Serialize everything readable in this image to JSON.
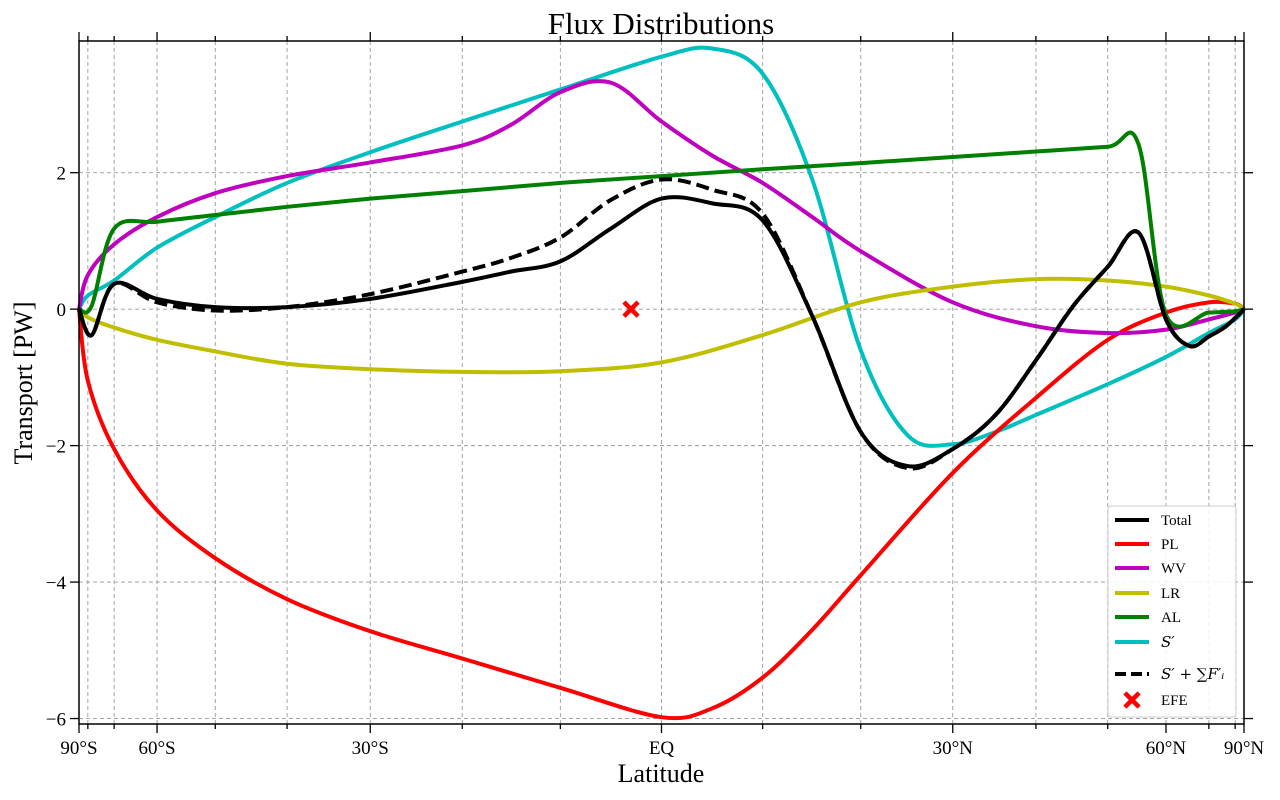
{
  "chart_data": {
    "type": "line",
    "title": "Flux Distributions",
    "xlabel": "Latitude",
    "ylabel": "Transport [PW]",
    "xscale": "sine of latitude",
    "xlim": [
      -90,
      90
    ],
    "ylim": [
      -6.08,
      3.93
    ],
    "grid": true,
    "legend_position": "bottom-right",
    "x_major_ticks": [
      {
        "lat": -90,
        "label": "90°S"
      },
      {
        "lat": -60,
        "label": "60°S"
      },
      {
        "lat": -30,
        "label": "30°S"
      },
      {
        "lat": 0,
        "label": "EQ"
      },
      {
        "lat": 30,
        "label": "30°N"
      },
      {
        "lat": 60,
        "label": "60°N"
      },
      {
        "lat": 90,
        "label": "90°N"
      }
    ],
    "x_minor_ticks": [
      -80,
      -70,
      -50,
      -40,
      -20,
      -10,
      10,
      20,
      40,
      50,
      70,
      80
    ],
    "y_ticks": [
      {
        "value": -6,
        "label": "−6"
      },
      {
        "value": -4,
        "label": "−4"
      },
      {
        "value": -2,
        "label": "−2"
      },
      {
        "value": 0,
        "label": "0"
      },
      {
        "value": 2,
        "label": "2"
      }
    ],
    "series": [
      {
        "name": "Total",
        "color": "#000000",
        "dash": "solid",
        "x": [
          -90,
          -78,
          -70,
          -60,
          -50,
          -40,
          -30,
          -20,
          -15,
          -10,
          -5,
          0,
          5,
          10,
          15,
          20,
          25,
          30,
          35,
          40,
          45,
          50,
          55,
          60,
          65,
          70,
          75,
          80,
          90
        ],
        "y": [
          0,
          -0.38,
          0.37,
          0.15,
          0.03,
          0.03,
          0.15,
          0.4,
          0.55,
          0.7,
          1.18,
          1.62,
          1.55,
          1.3,
          -0.1,
          -1.8,
          -2.3,
          -2.05,
          -1.55,
          -0.75,
          0.05,
          0.62,
          1.12,
          -0.15,
          -0.54,
          -0.4,
          -0.27,
          -0.13,
          0
        ]
      },
      {
        "name": "PL",
        "color": "#ff0000",
        "dash": "solid",
        "x": [
          -90,
          -80,
          -70,
          -60,
          -50,
          -40,
          -30,
          -20,
          -10,
          0,
          5,
          10,
          15,
          20,
          30,
          40,
          50,
          60,
          70,
          80,
          90
        ],
        "y": [
          0,
          -1.05,
          -2.05,
          -2.95,
          -3.65,
          -4.25,
          -4.72,
          -5.12,
          -5.55,
          -5.98,
          -5.85,
          -5.4,
          -4.7,
          -3.9,
          -2.4,
          -1.3,
          -0.45,
          -0.05,
          0.1,
          0.08,
          0
        ]
      },
      {
        "name": "WV",
        "color": "#bf00bf",
        "dash": "solid",
        "x": [
          -90,
          -80,
          -70,
          -60,
          -50,
          -40,
          -30,
          -20,
          -15,
          -10,
          -5,
          0,
          5,
          10,
          15,
          20,
          30,
          40,
          50,
          60,
          70,
          80,
          90
        ],
        "y": [
          0,
          0.5,
          0.95,
          1.35,
          1.7,
          1.95,
          2.15,
          2.4,
          2.7,
          3.18,
          3.32,
          2.75,
          2.25,
          1.85,
          1.35,
          0.85,
          0.1,
          -0.25,
          -0.35,
          -0.3,
          -0.15,
          -0.05,
          0
        ]
      },
      {
        "name": "LR",
        "color": "#bfbf00",
        "dash": "solid",
        "x": [
          -90,
          -80,
          -70,
          -60,
          -50,
          -40,
          -30,
          -20,
          -10,
          0,
          10,
          20,
          30,
          40,
          50,
          60,
          70,
          80,
          90
        ],
        "y": [
          0,
          -0.12,
          -0.27,
          -0.45,
          -0.62,
          -0.8,
          -0.88,
          -0.92,
          -0.91,
          -0.78,
          -0.38,
          0.1,
          0.33,
          0.44,
          0.42,
          0.33,
          0.2,
          0.08,
          0
        ]
      },
      {
        "name": "AL",
        "color": "#008000",
        "dash": "solid",
        "x": [
          -90,
          -78,
          -70,
          -60,
          -50,
          -40,
          -30,
          -20,
          -10,
          0,
          10,
          20,
          30,
          40,
          50,
          55,
          60,
          70,
          80,
          90
        ],
        "y": [
          0,
          0.05,
          1.18,
          1.28,
          1.38,
          1.5,
          1.62,
          1.73,
          1.85,
          1.95,
          2.05,
          2.14,
          2.23,
          2.31,
          2.38,
          2.41,
          -0.08,
          -0.05,
          -0.03,
          0
        ]
      },
      {
        "name": "S′",
        "color": "#00bfbf",
        "dash": "solid",
        "x": [
          -90,
          -80,
          -70,
          -60,
          -50,
          -40,
          -30,
          -20,
          -10,
          0,
          5,
          10,
          15,
          20,
          25,
          30,
          35,
          40,
          50,
          60,
          70,
          80,
          90
        ],
        "y": [
          0,
          0.2,
          0.42,
          0.9,
          1.35,
          1.85,
          2.3,
          2.75,
          3.22,
          3.7,
          3.82,
          3.45,
          1.9,
          -0.6,
          -1.85,
          -1.98,
          -1.8,
          -1.55,
          -1.1,
          -0.7,
          -0.35,
          -0.15,
          0
        ]
      },
      {
        "name": "S′ + ∑F′ᵢ",
        "color": "#000000",
        "dash": "dashed",
        "x": [
          -90,
          -78,
          -70,
          -60,
          -50,
          -40,
          -30,
          -20,
          -15,
          -10,
          -5,
          0,
          5,
          10,
          15,
          20,
          25,
          30,
          35,
          40,
          45,
          50,
          55,
          60,
          65,
          70,
          75,
          80,
          90
        ],
        "y": [
          0,
          -0.38,
          0.37,
          0.1,
          -0.02,
          0.03,
          0.22,
          0.55,
          0.75,
          1.05,
          1.6,
          1.9,
          1.75,
          1.4,
          -0.1,
          -1.8,
          -2.33,
          -2.05,
          -1.55,
          -0.75,
          0.05,
          0.62,
          1.12,
          -0.15,
          -0.54,
          -0.4,
          -0.27,
          -0.13,
          0
        ]
      }
    ],
    "markers": [
      {
        "name": "EFE",
        "color": "#ff0000",
        "symbol": "X",
        "x": -3,
        "y": 0
      }
    ]
  }
}
